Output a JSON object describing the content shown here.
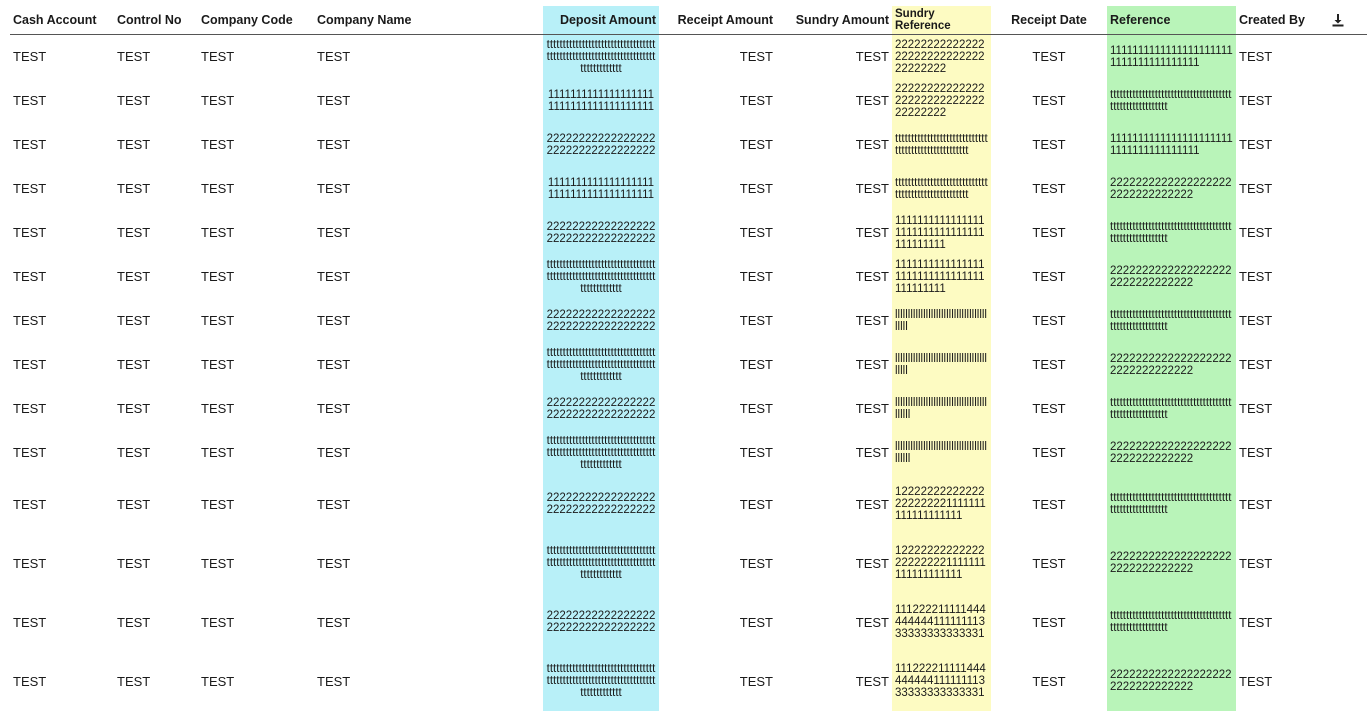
{
  "columns": {
    "cash_account": "Cash Account",
    "control_no": "Control No",
    "company_code": "Company Code",
    "company_name": "Company Name",
    "deposit_amount": "Deposit Amount",
    "receipt_amount": "Receipt Amount",
    "sundry_amount": "Sundry Amount",
    "sundry_reference": "Sundry Reference",
    "receipt_date": "Receipt Date",
    "reference": "Reference",
    "created_by": "Created By"
  },
  "icons": {
    "download": "download-icon"
  },
  "colors": {
    "deposit_highlight": "#b8f0f8",
    "sundry_reference_highlight": "#fdfbc2",
    "reference_highlight": "#b9f4b9"
  },
  "rows": [
    {
      "cash_account": "TEST",
      "control_no": "TEST",
      "company_code": "TEST",
      "company_name": "TEST",
      "deposit_amount": "ttttttttttttttttttttttttttttttttttttttttttttttttttttttttttttttttttttttttttttttttt",
      "receipt_amount": "TEST",
      "sundry_amount": "TEST",
      "sundry_reference": "222222222222222222222222222222222222",
      "receipt_date": "TEST",
      "reference": "11111111111111111111111111111111111111",
      "created_by": "TEST"
    },
    {
      "cash_account": "TEST",
      "control_no": "TEST",
      "company_code": "TEST",
      "company_name": "TEST",
      "deposit_amount": "11111111111111111111111111111111111111",
      "receipt_amount": "TEST",
      "sundry_amount": "TEST",
      "sundry_reference": "222222222222222222222222222222222222",
      "receipt_date": "TEST",
      "reference": "tttttttttttttttttttttttttttttttttttttttttttttttttttttttt",
      "created_by": "TEST"
    },
    {
      "cash_account": "TEST",
      "control_no": "TEST",
      "company_code": "TEST",
      "company_name": "TEST",
      "deposit_amount": "2222222222222222222222222222222222",
      "receipt_amount": "TEST",
      "sundry_amount": "TEST",
      "sundry_reference": "tttttttttttttttttttttttttttttttttttttttttttttttttttt",
      "receipt_date": "TEST",
      "reference": "11111111111111111111111111111111111111",
      "created_by": "TEST"
    },
    {
      "cash_account": "TEST",
      "control_no": "TEST",
      "company_code": "TEST",
      "company_name": "TEST",
      "deposit_amount": "11111111111111111111111111111111111111",
      "receipt_amount": "TEST",
      "sundry_amount": "TEST",
      "sundry_reference": "tttttttttttttttttttttttttttttttttttttttttttttttttttt",
      "receipt_date": "TEST",
      "reference": "22222222222222222222222222222222",
      "created_by": "TEST"
    },
    {
      "cash_account": "TEST",
      "control_no": "TEST",
      "company_code": "TEST",
      "company_name": "TEST",
      "deposit_amount": "2222222222222222222222222222222222",
      "receipt_amount": "TEST",
      "sundry_amount": "TEST",
      "sundry_reference": "11111111111111111111111111111111111111111",
      "receipt_date": "TEST",
      "reference": "tttttttttttttttttttttttttttttttttttttttttttttttttttttttt",
      "created_by": "TEST"
    },
    {
      "cash_account": "TEST",
      "control_no": "TEST",
      "company_code": "TEST",
      "company_name": "TEST",
      "deposit_amount": "ttttttttttttttttttttttttttttttttttttttttttttttttttttttttttttttttttttttttttttttttt",
      "receipt_amount": "TEST",
      "sundry_amount": "TEST",
      "sundry_reference": "11111111111111111111111111111111111111111",
      "receipt_date": "TEST",
      "reference": "22222222222222222222222222222222",
      "created_by": "TEST"
    },
    {
      "cash_account": "TEST",
      "control_no": "TEST",
      "company_code": "TEST",
      "company_name": "TEST",
      "deposit_amount": "2222222222222222222222222222222222",
      "receipt_amount": "TEST",
      "sundry_amount": "TEST",
      "sundry_reference": "lllllllllllllllllllllllllllllllllllllllll",
      "receipt_date": "TEST",
      "reference": "tttttttttttttttttttttttttttttttttttttttttttttttttttttttt",
      "created_by": "TEST"
    },
    {
      "cash_account": "TEST",
      "control_no": "TEST",
      "company_code": "TEST",
      "company_name": "TEST",
      "deposit_amount": "ttttttttttttttttttttttttttttttttttttttttttttttttttttttttttttttttttttttttttttttttt",
      "receipt_amount": "TEST",
      "sundry_amount": "TEST",
      "sundry_reference": "lllllllllllllllllllllllllllllllllllllllll",
      "receipt_date": "TEST",
      "reference": "22222222222222222222222222222222",
      "created_by": "TEST"
    },
    {
      "cash_account": "TEST",
      "control_no": "TEST",
      "company_code": "TEST",
      "company_name": "TEST",
      "deposit_amount": "2222222222222222222222222222222222",
      "receipt_amount": "TEST",
      "sundry_amount": "TEST",
      "sundry_reference": "llllllllllllllllllllllllllllllllllllllllll",
      "receipt_date": "TEST",
      "reference": "tttttttttttttttttttttttttttttttttttttttttttttttttttttttt",
      "created_by": "TEST"
    },
    {
      "cash_account": "TEST",
      "control_no": "TEST",
      "company_code": "TEST",
      "company_name": "TEST",
      "deposit_amount": "ttttttttttttttttttttttttttttttttttttttttttttttttttttttttttttttttttttttttttttttttt",
      "receipt_amount": "TEST",
      "sundry_amount": "TEST",
      "sundry_reference": "llllllllllllllllllllllllllllllllllllllllll",
      "receipt_date": "TEST",
      "reference": "22222222222222222222222222222222",
      "created_by": "TEST"
    },
    {
      "cash_account": "TEST",
      "control_no": "TEST",
      "company_code": "TEST",
      "company_name": "TEST",
      "deposit_amount": "2222222222222222222222222222222222",
      "receipt_amount": "TEST",
      "sundry_amount": "TEST",
      "sundry_reference": "12222222222222222222221111111111111111111",
      "receipt_date": "TEST",
      "reference": "tttttttttttttttttttttttttttttttttttttttttttttttttttttttt",
      "created_by": "TEST"
    },
    {
      "cash_account": "TEST",
      "control_no": "TEST",
      "company_code": "TEST",
      "company_name": "TEST",
      "deposit_amount": "ttttttttttttttttttttttttttttttttttttttttttttttttttttttttttttttttttttttttttttttttt",
      "receipt_amount": "TEST",
      "sundry_amount": "TEST",
      "sundry_reference": "12222222222222222222221111111111111111111",
      "receipt_date": "TEST",
      "reference": "22222222222222222222222222222222",
      "created_by": "TEST"
    },
    {
      "cash_account": "TEST",
      "control_no": "TEST",
      "company_code": "TEST",
      "company_name": "TEST",
      "deposit_amount": "2222222222222222222222222222222222",
      "receipt_amount": "TEST",
      "sundry_amount": "TEST",
      "sundry_reference": "11122221111144444444411111111333333333333331",
      "receipt_date": "TEST",
      "reference": "tttttttttttttttttttttttttttttttttttttttttttttttttttttttt",
      "created_by": "TEST"
    },
    {
      "cash_account": "TEST",
      "control_no": "TEST",
      "company_code": "TEST",
      "company_name": "TEST",
      "deposit_amount": "ttttttttttttttttttttttttttttttttttttttttttttttttttttttttttttttttttttttttttttttttt",
      "receipt_amount": "TEST",
      "sundry_amount": "TEST",
      "sundry_reference": "11122221111144444444411111111333333333333331",
      "receipt_date": "TEST",
      "reference": "22222222222222222222222222222222",
      "created_by": "TEST"
    }
  ]
}
